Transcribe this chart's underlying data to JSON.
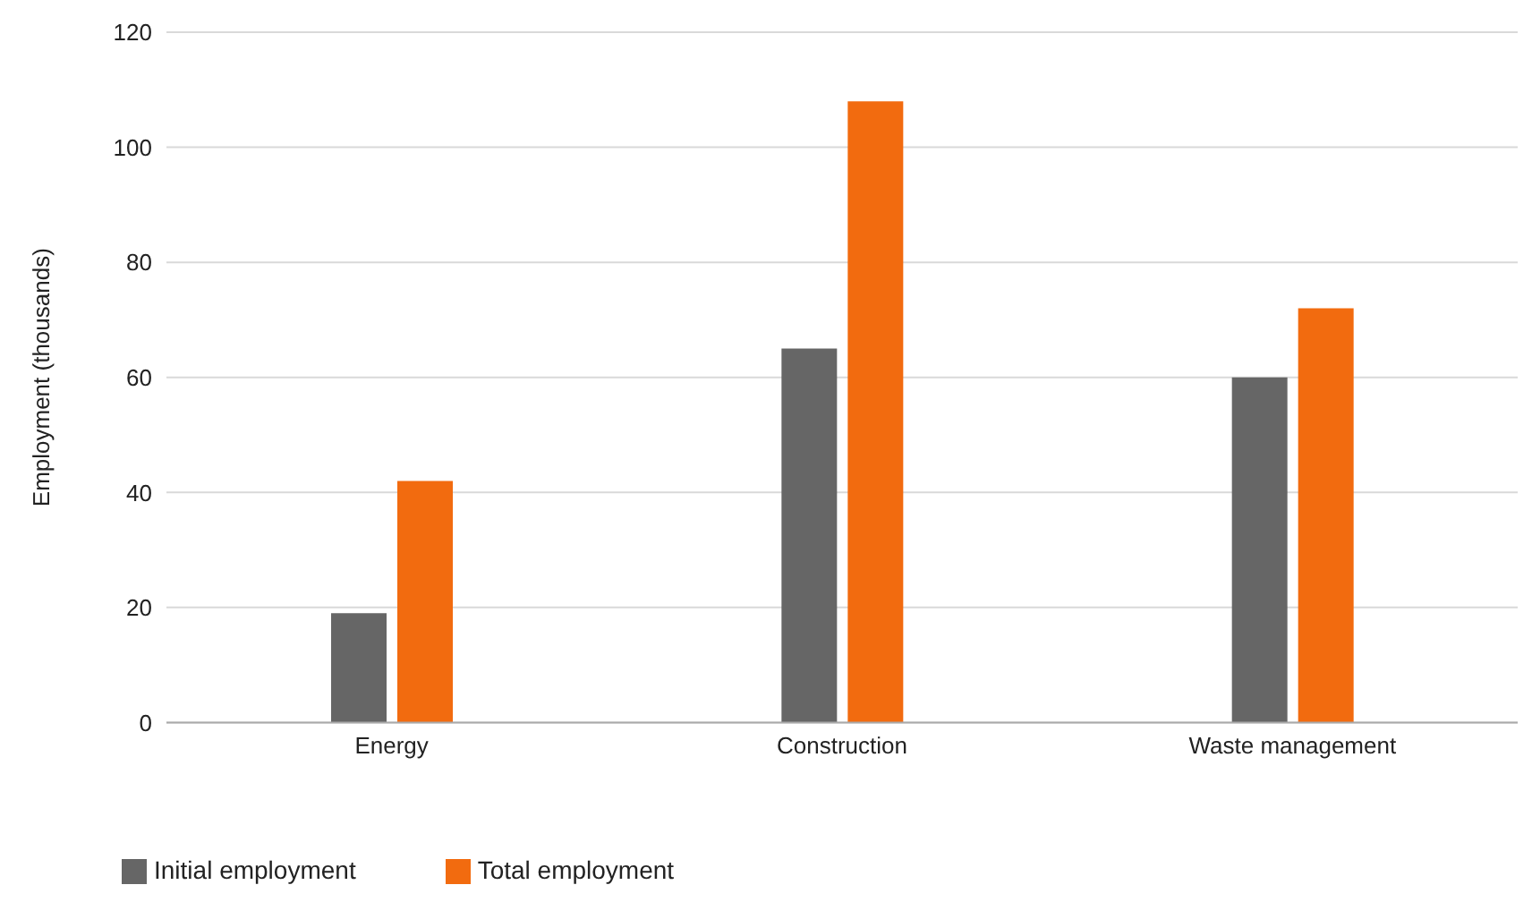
{
  "chart_data": {
    "type": "bar",
    "ylabel": "Employment (thousands)",
    "categories": [
      "Energy",
      "Construction",
      "Waste management"
    ],
    "series": [
      {
        "name": "Initial employment",
        "color": "#666666",
        "values": [
          19,
          65,
          60
        ]
      },
      {
        "name": "Total employment",
        "color": "#f26b0f",
        "values": [
          42,
          108,
          72
        ]
      }
    ],
    "ylim": [
      0,
      120
    ],
    "yticks": [
      0,
      20,
      40,
      60,
      80,
      100,
      120
    ],
    "grid": "y",
    "legend": "bottom left"
  }
}
